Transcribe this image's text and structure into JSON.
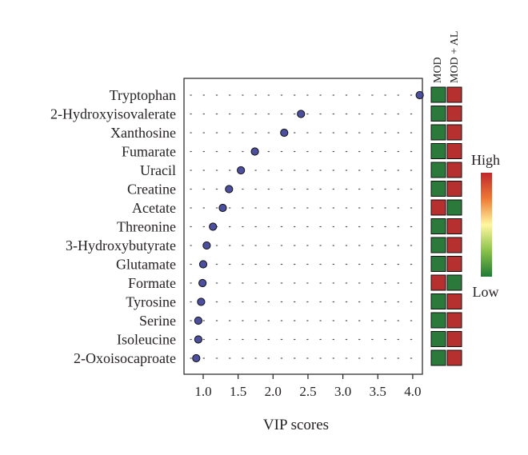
{
  "chart_data": {
    "type": "scatter",
    "title": "",
    "xlabel": "VIP scores",
    "ylabel": "",
    "xlim": [
      0.8,
      4.15
    ],
    "xticks": [
      1.0,
      1.5,
      2.0,
      2.5,
      3.0,
      3.5,
      4.0
    ],
    "xtick_labels": [
      "1.0",
      "1.5",
      "2.0",
      "2.5",
      "3.0",
      "3.5",
      "4.0"
    ],
    "grid": "dotted rows",
    "categories": [
      "Tryptophan",
      "2-Hydroxyisovalerate",
      "Xanthosine",
      "Fumarate",
      "Uracil",
      "Creatine",
      "Acetate",
      "Threonine",
      "3-Hydroxybutyrate",
      "Glutamate",
      "Formate",
      "Tyrosine",
      "Serine",
      "Isoleucine",
      "2-Oxoisocaproate"
    ],
    "values": [
      4.1,
      2.4,
      2.16,
      1.74,
      1.54,
      1.37,
      1.28,
      1.14,
      1.05,
      1.0,
      0.99,
      0.97,
      0.93,
      0.93,
      0.9
    ],
    "marker_color": "#4b4f9e",
    "heatmap": {
      "columns": [
        "MOD",
        "MOD + AL"
      ],
      "cells": [
        [
          "low",
          "high"
        ],
        [
          "low",
          "high"
        ],
        [
          "low",
          "high"
        ],
        [
          "low",
          "high"
        ],
        [
          "low",
          "high"
        ],
        [
          "low",
          "high"
        ],
        [
          "high",
          "low"
        ],
        [
          "low",
          "high"
        ],
        [
          "low",
          "high"
        ],
        [
          "low",
          "high"
        ],
        [
          "high",
          "low"
        ],
        [
          "low",
          "high"
        ],
        [
          "low",
          "high"
        ],
        [
          "low",
          "high"
        ],
        [
          "low",
          "high"
        ]
      ],
      "colors": {
        "high": "#b5302f",
        "low": "#2b7a3b"
      }
    },
    "colorbar": {
      "high_label": "High",
      "low_label": "Low",
      "gradient": [
        "#c0282d",
        "#ee7a35",
        "#fff7a0",
        "#8bc34a",
        "#1f7a34"
      ]
    }
  }
}
